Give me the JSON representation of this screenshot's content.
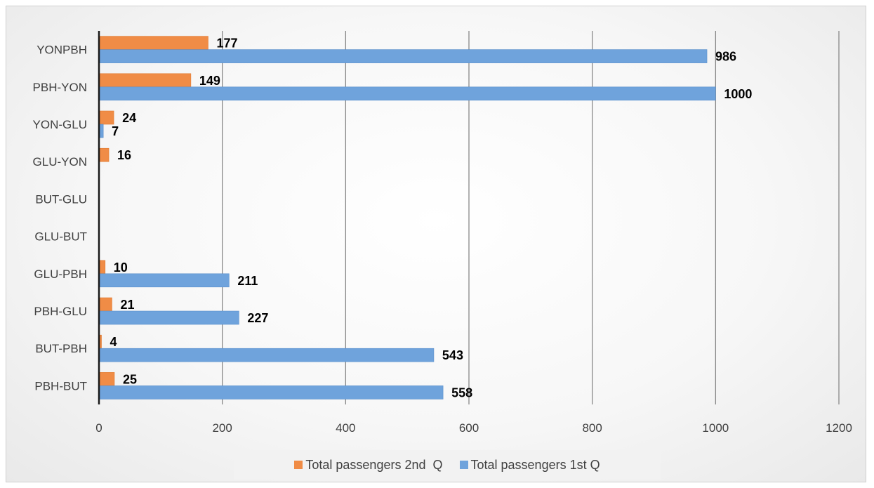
{
  "chart_data": {
    "type": "bar",
    "orientation": "horizontal",
    "categories": [
      "YONPBH",
      "PBH-YON",
      "YON-GLU",
      "GLU-YON",
      "BUT-GLU",
      "GLU-BUT",
      "GLU-PBH",
      "PBH-GLU",
      "BUT-PBH",
      "PBH-BUT"
    ],
    "series": [
      {
        "name": "Total passengers 2nd  Q",
        "color": "#f08c46",
        "values": [
          177,
          149,
          24,
          16,
          null,
          null,
          10,
          21,
          4,
          25
        ]
      },
      {
        "name": "Total passengers 1st Q",
        "color": "#6fa3dc",
        "values": [
          986,
          1000,
          7,
          null,
          null,
          null,
          211,
          227,
          543,
          558
        ]
      }
    ],
    "xlim": [
      0,
      1200
    ],
    "xticks": [
      0,
      200,
      400,
      600,
      800,
      1000,
      1200
    ],
    "grid": "vertical",
    "legend_position": "bottom",
    "title": "",
    "xlabel": "",
    "ylabel": ""
  }
}
